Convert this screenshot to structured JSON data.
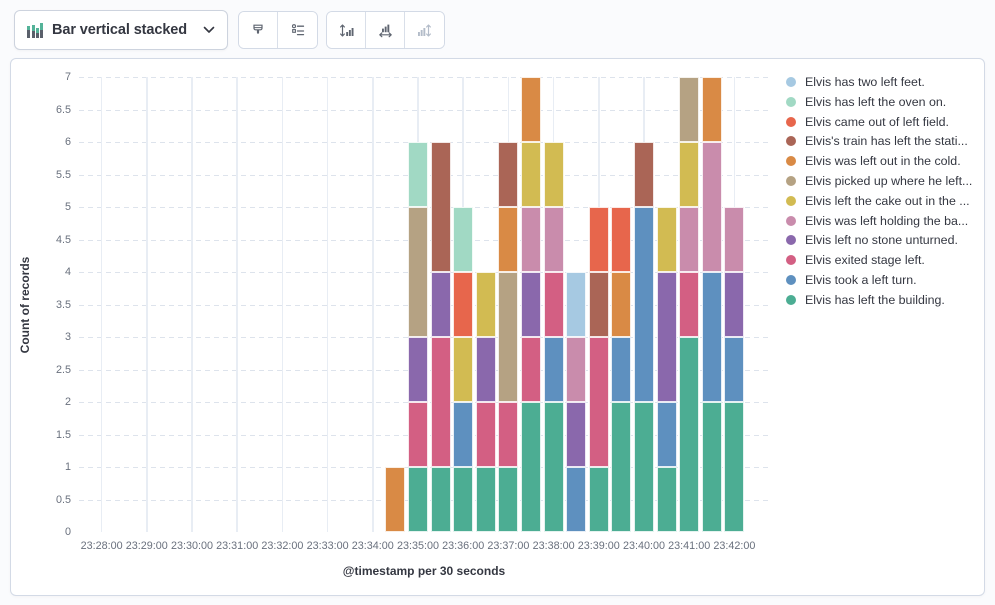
{
  "toolbar": {
    "chart_type_selector": {
      "label": "Bar vertical stacked",
      "icon": "stacked-bar-chart-icon",
      "chevron_icon": "chevron-down-icon"
    },
    "style_group": [
      {
        "name": "visual-options",
        "icon": "brush-icon"
      },
      {
        "name": "legend-settings",
        "icon": "legend-list-icon"
      }
    ],
    "axis_group": [
      {
        "name": "left-axis",
        "icon": "axis-left-icon",
        "disabled": false
      },
      {
        "name": "bottom-axis",
        "icon": "axis-bottom-icon",
        "disabled": false
      },
      {
        "name": "right-axis",
        "icon": "axis-right-icon",
        "disabled": true
      }
    ]
  },
  "colors": {
    "panel_border": "#d3dae6",
    "icon_gray": "#5f6570",
    "icon_disabled": "#b3bcc9",
    "icon_accent_green": "#54b399",
    "text_dark": "#343741",
    "tick_text": "#69707d"
  },
  "chart_data": {
    "type": "bar",
    "mode": "stacked",
    "orientation": "vertical",
    "xlabel": "@timestamp per 30 seconds",
    "ylabel": "Count of records",
    "ylim": [
      0,
      7
    ],
    "y_tick_step": 0.5,
    "grid": {
      "horizontal": "dashed",
      "vertical": "solid"
    },
    "legend_position": "right",
    "x_ticks": [
      "23:28:00",
      "23:29:00",
      "23:30:00",
      "23:31:00",
      "23:32:00",
      "23:33:00",
      "23:34:00",
      "23:35:00",
      "23:36:00",
      "23:37:00",
      "23:38:00",
      "23:39:00",
      "23:40:00",
      "23:41:00",
      "23:42:00"
    ],
    "buckets": [
      "23:34:30",
      "23:35:00",
      "23:35:30",
      "23:36:00",
      "23:36:30",
      "23:37:00",
      "23:37:30",
      "23:38:00",
      "23:38:30",
      "23:39:00",
      "23:39:30",
      "23:40:00",
      "23:40:30",
      "23:41:00",
      "23:41:30",
      "23:42:00"
    ],
    "first_bucket_slot": 13,
    "total_half_minute_slots": 29,
    "stack_order": "reverse-legend",
    "series": [
      {
        "label": "Elvis has two left feet.",
        "color": "#a6c9e2",
        "values": [
          0,
          0,
          0,
          0,
          0,
          0,
          0,
          0,
          1,
          0,
          0,
          0,
          0,
          0,
          0,
          0
        ]
      },
      {
        "label": "Elvis has left the oven on.",
        "color": "#a1d9c4",
        "values": [
          0,
          1,
          0,
          1,
          0,
          0,
          0,
          0,
          0,
          0,
          0,
          0,
          0,
          0,
          0,
          0
        ]
      },
      {
        "label": "Elvis came out of left field.",
        "color": "#e7664c",
        "values": [
          0,
          0,
          0,
          1,
          0,
          0,
          0,
          0,
          0,
          1,
          1,
          0,
          0,
          0,
          0,
          0
        ]
      },
      {
        "label": "Elvis's train has left the stati...",
        "color": "#aa6556",
        "values": [
          0,
          0,
          2,
          0,
          0,
          1,
          0,
          0,
          0,
          1,
          0,
          1,
          0,
          0,
          0,
          0
        ]
      },
      {
        "label": "Elvis was left out in the cold.",
        "color": "#d98a45",
        "values": [
          1,
          0,
          0,
          0,
          0,
          1,
          1,
          0,
          0,
          0,
          1,
          0,
          0,
          0,
          1,
          0
        ]
      },
      {
        "label": "Elvis picked up where he left...",
        "color": "#b5a283",
        "values": [
          0,
          2,
          0,
          0,
          0,
          2,
          0,
          0,
          0,
          0,
          0,
          0,
          0,
          1,
          0,
          0
        ]
      },
      {
        "label": "Elvis left the cake out in the ...",
        "color": "#d2bb52",
        "values": [
          0,
          0,
          0,
          1,
          1,
          0,
          1,
          1,
          0,
          0,
          0,
          0,
          1,
          1,
          0,
          0
        ]
      },
      {
        "label": "Elvis was left holding the ba...",
        "color": "#c98cac",
        "values": [
          0,
          0,
          0,
          0,
          0,
          0,
          1,
          1,
          1,
          0,
          0,
          0,
          0,
          1,
          2,
          1
        ]
      },
      {
        "label": "Elvis left no stone unturned.",
        "color": "#8a68ac",
        "values": [
          0,
          1,
          1,
          0,
          1,
          0,
          1,
          0,
          1,
          0,
          0,
          0,
          2,
          0,
          0,
          1
        ]
      },
      {
        "label": "Elvis exited stage left.",
        "color": "#d35f83",
        "values": [
          0,
          1,
          2,
          0,
          1,
          1,
          1,
          1,
          0,
          2,
          0,
          0,
          0,
          1,
          0,
          0
        ]
      },
      {
        "label": "Elvis took a left turn.",
        "color": "#5e90bf",
        "values": [
          0,
          0,
          0,
          1,
          0,
          0,
          0,
          1,
          1,
          0,
          1,
          3,
          1,
          0,
          2,
          1
        ]
      },
      {
        "label": "Elvis has left the building.",
        "color": "#4cad93",
        "values": [
          0,
          1,
          1,
          1,
          1,
          1,
          2,
          2,
          0,
          1,
          2,
          2,
          1,
          3,
          2,
          2
        ]
      }
    ]
  }
}
